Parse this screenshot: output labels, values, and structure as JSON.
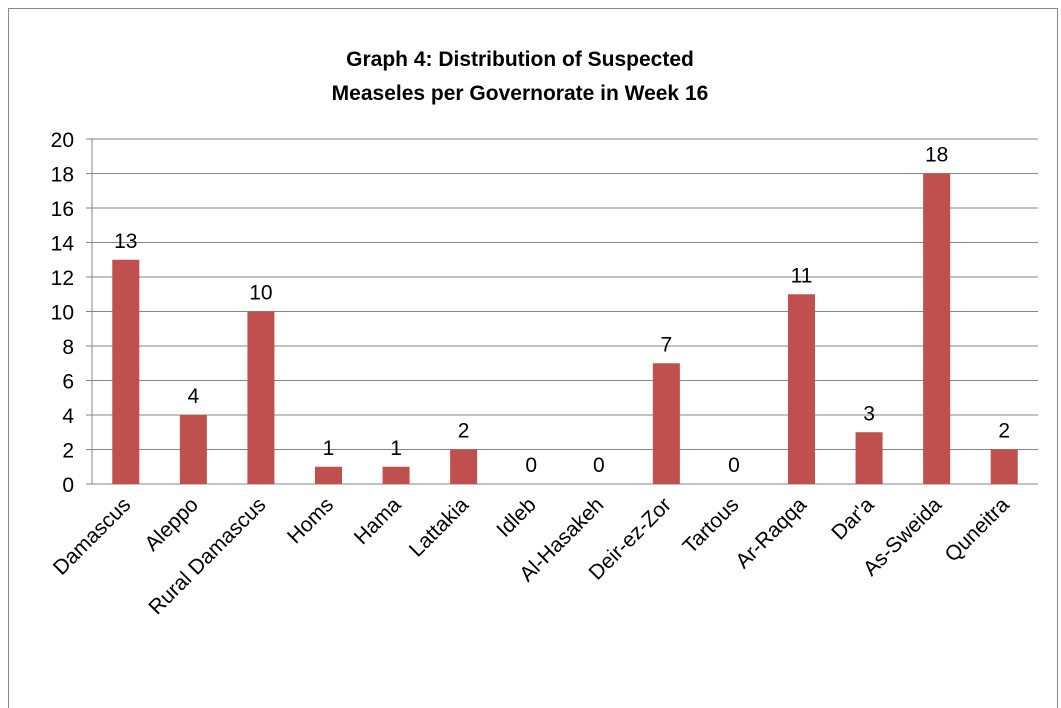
{
  "chart_data": {
    "type": "bar",
    "title_lines": [
      "Graph 4: Distribution of Suspected",
      "Measeles per Governorate in Week 16"
    ],
    "categories": [
      "Damascus",
      "Aleppo",
      "Rural Damascus",
      "Homs",
      "Hama",
      "Lattakia",
      "Idleb",
      "Al-Hasakeh",
      "Deir-ez-Zor",
      "Tartous",
      "Ar-Raqqa",
      "Dar'a",
      "As-Sweida",
      "Quneitra"
    ],
    "values": [
      13,
      4,
      10,
      1,
      1,
      2,
      0,
      0,
      7,
      0,
      11,
      3,
      18,
      2
    ],
    "y_ticks": [
      "0",
      "2",
      "4",
      "6",
      "8",
      "10",
      "12",
      "14",
      "16",
      "18",
      "20"
    ],
    "ylim": [
      0,
      20
    ],
    "grid": true,
    "data_labels": true,
    "legend": "none",
    "bar_color": "#c0504d",
    "grid_color": "#868686"
  }
}
